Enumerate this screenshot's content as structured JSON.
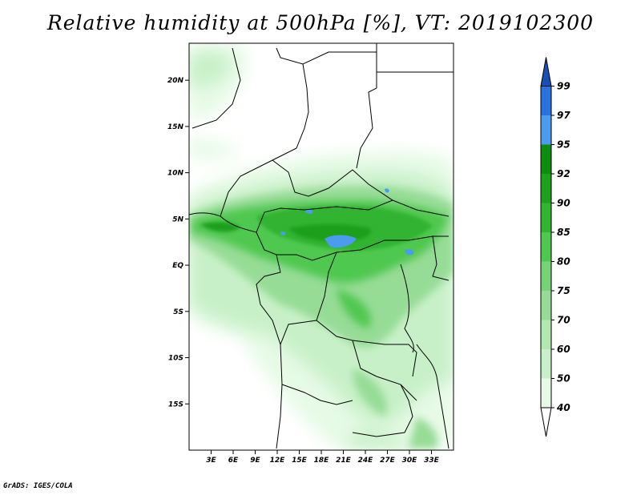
{
  "title": "Relative humidity at 500hPa [%], VT: 2019102300",
  "footer": "GrADS: IGES/COLA",
  "map": {
    "lon_range": [
      0,
      36
    ],
    "lat_range": [
      -20,
      24
    ],
    "lat_labels": [
      {
        "lat": 20,
        "text": "20N"
      },
      {
        "lat": 15,
        "text": "15N"
      },
      {
        "lat": 10,
        "text": "10N"
      },
      {
        "lat": 5,
        "text": "5N"
      },
      {
        "lat": 0,
        "text": "EQ"
      },
      {
        "lat": -5,
        "text": "5S"
      },
      {
        "lat": -10,
        "text": "10S"
      },
      {
        "lat": -15,
        "text": "15S"
      }
    ],
    "lon_labels": [
      {
        "lon": 3,
        "text": "3E"
      },
      {
        "lon": 6,
        "text": "6E"
      },
      {
        "lon": 9,
        "text": "9E"
      },
      {
        "lon": 12,
        "text": "12E"
      },
      {
        "lon": 15,
        "text": "15E"
      },
      {
        "lon": 18,
        "text": "18E"
      },
      {
        "lon": 21,
        "text": "21E"
      },
      {
        "lon": 24,
        "text": "24E"
      },
      {
        "lon": 27,
        "text": "27E"
      },
      {
        "lon": 30,
        "text": "30E"
      },
      {
        "lon": 33,
        "text": "33E"
      }
    ]
  },
  "colorbar": {
    "levels": [
      "40",
      "50",
      "60",
      "70",
      "75",
      "80",
      "85",
      "90",
      "92",
      "95",
      "97",
      "99"
    ],
    "colors": [
      "#ffffff",
      "#e6fae6",
      "#c8f0c8",
      "#b0e8b0",
      "#96dc96",
      "#78d278",
      "#50c850",
      "#32b432",
      "#1ea01e",
      "#0f8c0f",
      "#4b9bef",
      "#2a73dc",
      "#1650b4"
    ]
  }
}
